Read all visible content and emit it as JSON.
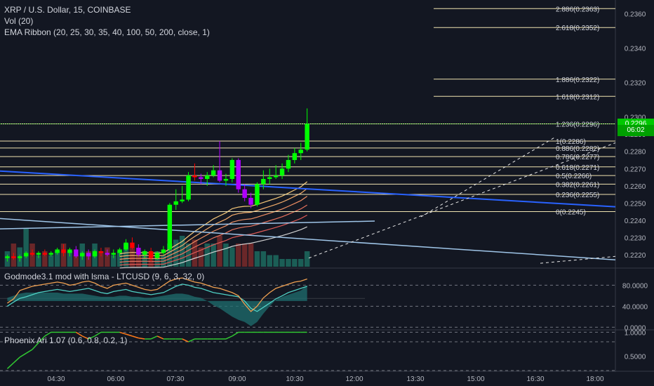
{
  "legend": {
    "title": "XRP / U.S. Dollar, 15, COINBASE",
    "volume": "Vol (20)",
    "ema": "EMA Ribbon (20, 25, 30, 35, 40, 100, 50, 200, close, 1)",
    "osc": "Godmode3.1 mod with lsma - LTCUSD (9, 6, 3, 32, 0)",
    "phoenix": "Phoenix Ari 1.07 (0.6, 0.8, 0.2, 1)"
  },
  "price_tag": {
    "value": "0.2296",
    "countdown": "06:02",
    "color": "#00c800"
  },
  "colors": {
    "bull": "#00ff00",
    "bear": "#ff0000",
    "purple": "#b000ff",
    "fib": "#f0e3b0",
    "trend_blue": "#2962ff",
    "trend_light": "#9fc5e8",
    "osc_fill": "#1f6f6f",
    "phoenix_line": "#31c832",
    "phoenix_line2": "#ff7a1a"
  },
  "chart_data": [
    {
      "type": "candlestick",
      "title": "XRP / U.S. Dollar, 15, COINBASE",
      "ylim": [
        0.2213,
        0.2368
      ],
      "y_ticks": [
        "0.2360",
        "0.2340",
        "0.2320",
        "0.2300",
        "0.2290",
        "0.2280",
        "0.2270",
        "0.2260",
        "0.2250",
        "0.2240",
        "0.2230",
        "0.2220"
      ],
      "x_ticks": [
        "04:30",
        "06:00",
        "07:30",
        "09:00",
        "10:30",
        "12:00",
        "13:30",
        "15:00",
        "16:30",
        "18:00"
      ],
      "fib_levels": [
        {
          "label": "2.886(0.2363)",
          "value": 0.2363
        },
        {
          "label": "2.618(0.2352)",
          "value": 0.2352
        },
        {
          "label": "1.886(0.2322)",
          "value": 0.2322
        },
        {
          "label": "1.618(0.2312)",
          "value": 0.2312
        },
        {
          "label": "1.236(0.2296)",
          "value": 0.2296
        },
        {
          "label": "1(0.2286)",
          "value": 0.2286
        },
        {
          "label": "0.886(0.2282)",
          "value": 0.2282
        },
        {
          "label": "0.786(0.2277)",
          "value": 0.2277
        },
        {
          "label": "0.618(0.2271)",
          "value": 0.2271
        },
        {
          "label": "0.5(0.2266)",
          "value": 0.2266
        },
        {
          "label": "0.382(0.2261)",
          "value": 0.2261
        },
        {
          "label": "0.236(0.2255)",
          "value": 0.2255
        },
        {
          "label": "0(0.2245)",
          "value": 0.2245
        }
      ],
      "candles": [
        {
          "o": 0.2218,
          "h": 0.222,
          "l": 0.2216,
          "c": 0.2219,
          "color": "bull"
        },
        {
          "o": 0.2219,
          "h": 0.2221,
          "l": 0.2217,
          "c": 0.2218,
          "color": "bear"
        },
        {
          "o": 0.2218,
          "h": 0.222,
          "l": 0.2216,
          "c": 0.2219,
          "color": "bull"
        },
        {
          "o": 0.2219,
          "h": 0.2222,
          "l": 0.2218,
          "c": 0.2221,
          "color": "bull"
        },
        {
          "o": 0.2221,
          "h": 0.2223,
          "l": 0.2219,
          "c": 0.222,
          "color": "bear"
        },
        {
          "o": 0.222,
          "h": 0.2222,
          "l": 0.2218,
          "c": 0.2221,
          "color": "bull"
        },
        {
          "o": 0.2221,
          "h": 0.2223,
          "l": 0.2219,
          "c": 0.222,
          "color": "bear"
        },
        {
          "o": 0.222,
          "h": 0.2222,
          "l": 0.2219,
          "c": 0.2221,
          "color": "bull"
        },
        {
          "o": 0.2221,
          "h": 0.2224,
          "l": 0.222,
          "c": 0.2223,
          "color": "bull"
        },
        {
          "o": 0.2223,
          "h": 0.2226,
          "l": 0.2219,
          "c": 0.2221,
          "color": "bear"
        },
        {
          "o": 0.2221,
          "h": 0.2224,
          "l": 0.2219,
          "c": 0.2223,
          "color": "bull"
        },
        {
          "o": 0.2223,
          "h": 0.2225,
          "l": 0.2218,
          "c": 0.2219,
          "color": "purple"
        },
        {
          "o": 0.2219,
          "h": 0.2222,
          "l": 0.2217,
          "c": 0.2221,
          "color": "bull"
        },
        {
          "o": 0.2221,
          "h": 0.2223,
          "l": 0.2217,
          "c": 0.2219,
          "color": "purple"
        },
        {
          "o": 0.2219,
          "h": 0.2223,
          "l": 0.2218,
          "c": 0.2222,
          "color": "bull"
        },
        {
          "o": 0.2222,
          "h": 0.2224,
          "l": 0.2219,
          "c": 0.2221,
          "color": "bear"
        },
        {
          "o": 0.2221,
          "h": 0.2223,
          "l": 0.2219,
          "c": 0.222,
          "color": "purple"
        },
        {
          "o": 0.222,
          "h": 0.2223,
          "l": 0.2218,
          "c": 0.2221,
          "color": "bull"
        },
        {
          "o": 0.2221,
          "h": 0.2224,
          "l": 0.2219,
          "c": 0.2223,
          "color": "bull"
        },
        {
          "o": 0.2223,
          "h": 0.2229,
          "l": 0.2222,
          "c": 0.2227,
          "color": "bull"
        },
        {
          "o": 0.2227,
          "h": 0.223,
          "l": 0.2223,
          "c": 0.2224,
          "color": "bear"
        },
        {
          "o": 0.2224,
          "h": 0.2226,
          "l": 0.2219,
          "c": 0.222,
          "color": "purple"
        },
        {
          "o": 0.222,
          "h": 0.2223,
          "l": 0.2218,
          "c": 0.2222,
          "color": "bull"
        },
        {
          "o": 0.2222,
          "h": 0.2224,
          "l": 0.2216,
          "c": 0.2218,
          "color": "bear"
        },
        {
          "o": 0.2218,
          "h": 0.2222,
          "l": 0.2217,
          "c": 0.2221,
          "color": "bull"
        },
        {
          "o": 0.2221,
          "h": 0.2225,
          "l": 0.222,
          "c": 0.2223,
          "color": "bull"
        },
        {
          "o": 0.2223,
          "h": 0.225,
          "l": 0.2222,
          "c": 0.2249,
          "color": "bull"
        },
        {
          "o": 0.2249,
          "h": 0.2258,
          "l": 0.2246,
          "c": 0.2251,
          "color": "bull"
        },
        {
          "o": 0.2251,
          "h": 0.226,
          "l": 0.225,
          "c": 0.2252,
          "color": "bull"
        },
        {
          "o": 0.2252,
          "h": 0.2268,
          "l": 0.2251,
          "c": 0.2266,
          "color": "bull"
        },
        {
          "o": 0.2266,
          "h": 0.2273,
          "l": 0.2263,
          "c": 0.2265,
          "color": "bear"
        },
        {
          "o": 0.2265,
          "h": 0.2267,
          "l": 0.2261,
          "c": 0.2264,
          "color": "purple"
        },
        {
          "o": 0.2264,
          "h": 0.2268,
          "l": 0.226,
          "c": 0.2266,
          "color": "bull"
        },
        {
          "o": 0.2266,
          "h": 0.2272,
          "l": 0.2265,
          "c": 0.2269,
          "color": "bull"
        },
        {
          "o": 0.2269,
          "h": 0.2286,
          "l": 0.2262,
          "c": 0.2263,
          "color": "purple"
        },
        {
          "o": 0.2263,
          "h": 0.2267,
          "l": 0.226,
          "c": 0.2264,
          "color": "bull"
        },
        {
          "o": 0.2264,
          "h": 0.2276,
          "l": 0.2262,
          "c": 0.2275,
          "color": "bull"
        },
        {
          "o": 0.2275,
          "h": 0.2276,
          "l": 0.2256,
          "c": 0.2258,
          "color": "purple"
        },
        {
          "o": 0.2258,
          "h": 0.2261,
          "l": 0.2251,
          "c": 0.2253,
          "color": "purple"
        },
        {
          "o": 0.2253,
          "h": 0.2256,
          "l": 0.2247,
          "c": 0.2249,
          "color": "purple"
        },
        {
          "o": 0.2249,
          "h": 0.2262,
          "l": 0.2248,
          "c": 0.2261,
          "color": "bull"
        },
        {
          "o": 0.2261,
          "h": 0.2269,
          "l": 0.2258,
          "c": 0.2264,
          "color": "bull"
        },
        {
          "o": 0.2264,
          "h": 0.227,
          "l": 0.2261,
          "c": 0.2265,
          "color": "bull"
        },
        {
          "o": 0.2265,
          "h": 0.2272,
          "l": 0.2264,
          "c": 0.2266,
          "color": "bull"
        },
        {
          "o": 0.2266,
          "h": 0.2273,
          "l": 0.2264,
          "c": 0.227,
          "color": "bull"
        },
        {
          "o": 0.227,
          "h": 0.2278,
          "l": 0.2268,
          "c": 0.2275,
          "color": "bull"
        },
        {
          "o": 0.2275,
          "h": 0.2282,
          "l": 0.2273,
          "c": 0.2279,
          "color": "bull"
        },
        {
          "o": 0.2279,
          "h": 0.2285,
          "l": 0.2275,
          "c": 0.2281,
          "color": "bull"
        },
        {
          "o": 0.2281,
          "h": 0.2305,
          "l": 0.228,
          "c": 0.2296,
          "color": "bull"
        }
      ],
      "volume": [
        2,
        3,
        2.5,
        5,
        3,
        1.5,
        2,
        1.5,
        2,
        3,
        2,
        1.5,
        3,
        2,
        3,
        2,
        2.5,
        1.5,
        2,
        3,
        2.5,
        1.5,
        2,
        1,
        2,
        1.5,
        3,
        3.5,
        4,
        3,
        3.5,
        2.5,
        3,
        3,
        4,
        3,
        2.5,
        3,
        3,
        3,
        2,
        2,
        1.5,
        1.5,
        1,
        1,
        1,
        1,
        2
      ]
    },
    {
      "type": "line",
      "title": "Godmode3.1 mod with lsma - LTCUSD (9, 6, 3, 32, 0)",
      "ylim": [
        -5,
        110
      ],
      "y_ticks": [
        "80.0000",
        "40.0000",
        "0.0000"
      ],
      "series": [
        {
          "name": "",
          "values": [
            40,
            48,
            55,
            58,
            62,
            66,
            68,
            70,
            72,
            70,
            68,
            70,
            72,
            74,
            70,
            66,
            64,
            68,
            70,
            72,
            68,
            66,
            64,
            62,
            64,
            66,
            72,
            78,
            82,
            80,
            76,
            74,
            70,
            66,
            64,
            62,
            60,
            58,
            50,
            36,
            30,
            38,
            46,
            54,
            60,
            66,
            70,
            74,
            78
          ]
        },
        {
          "name": "",
          "values": [
            46,
            54,
            70,
            74,
            78,
            80,
            82,
            84,
            86,
            84,
            80,
            82,
            86,
            88,
            84,
            78,
            74,
            80,
            82,
            84,
            80,
            76,
            72,
            70,
            72,
            80,
            88,
            92,
            94,
            90,
            86,
            84,
            80,
            76,
            74,
            70,
            66,
            60,
            44,
            30,
            40,
            56,
            66,
            74,
            78,
            82,
            86,
            88,
            92
          ]
        }
      ],
      "fill_values": [
        56,
        60,
        64,
        66,
        66,
        66,
        66,
        66,
        66,
        64,
        64,
        64,
        64,
        62,
        60,
        58,
        58,
        58,
        60,
        60,
        58,
        58,
        56,
        56,
        58,
        60,
        62,
        64,
        64,
        62,
        58,
        56,
        50,
        42,
        36,
        28,
        20,
        14,
        10,
        2,
        10,
        26,
        40,
        52,
        58,
        62,
        66,
        70,
        80
      ]
    },
    {
      "type": "line",
      "title": "Phoenix Ari 1.07 (0.6, 0.8, 0.2, 1)",
      "ylim": [
        0.2,
        1.05
      ],
      "y_ticks": [
        "1.0000",
        "0.5000"
      ],
      "series": [
        {
          "name": "",
          "values": [
            0.24,
            0.36,
            0.48,
            0.56,
            0.64,
            0.78,
            0.92,
            1.0,
            1.0,
            1.0,
            1.0,
            1.0,
            0.92,
            0.86,
            0.92,
            1.0,
            1.0,
            1.0,
            1.0,
            0.96,
            0.92,
            0.88,
            0.86,
            0.86,
            0.92,
            0.86,
            0.86,
            0.86,
            0.86,
            0.8,
            0.86,
            0.86,
            0.86,
            0.86,
            0.86,
            0.86,
            0.92,
            1.0,
            1.0,
            1.0,
            1.0,
            1.0,
            1.0,
            1.0,
            1.0,
            1.0,
            1.0,
            1.0,
            1.0
          ]
        }
      ]
    }
  ]
}
